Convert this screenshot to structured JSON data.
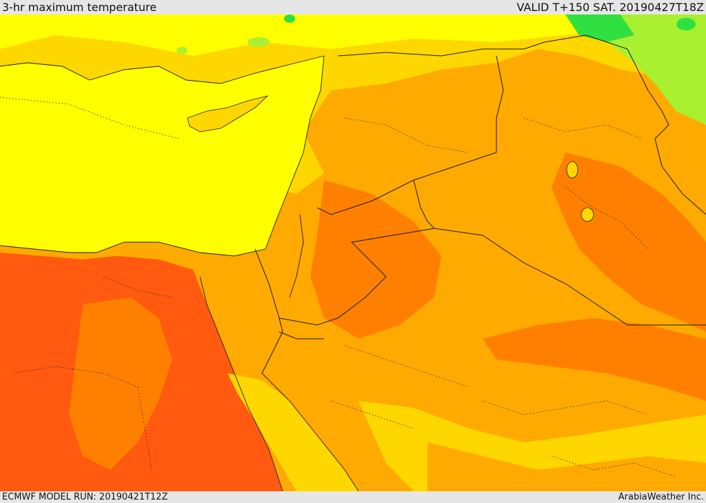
{
  "header": {
    "title": "3-hr maximum temperature",
    "valid_time": "VALID T+150 SAT. 20190427T18Z"
  },
  "footer": {
    "model_run": "ECMWF MODEL RUN: 20190421T12Z",
    "provider": "ArabiaWeather Inc."
  },
  "map": {
    "field": "3-hr maximum temperature",
    "palette": {
      "sea": "#ffff00",
      "mild": "#ffd700",
      "warm": "#ffaa00",
      "hot": "#ff8000",
      "very_hot": "#ff5a10",
      "cool_green": "#a8f030",
      "cold_green": "#30e040",
      "border_color": "#1a1a1a"
    }
  }
}
